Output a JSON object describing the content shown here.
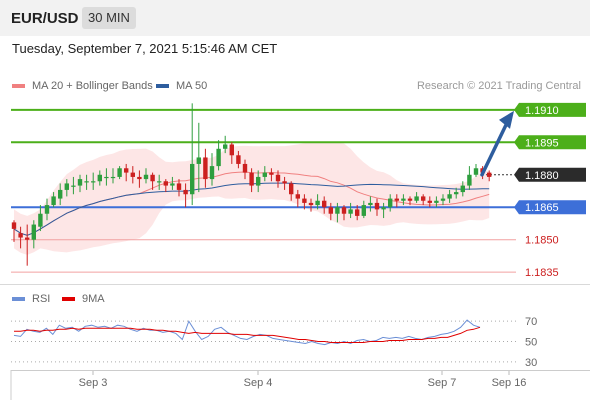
{
  "header": {
    "symbol": "EUR/USD",
    "timeframe": "30 MIN"
  },
  "datetime": "Tuesday, September 7, 2021 5:15:46 AM CET",
  "copyright": "Research © 2021 Trading Central",
  "legend": {
    "ma20": {
      "label": "MA 20 + Bollinger Bands",
      "color": "#f08080"
    },
    "ma50": {
      "label": "MA 50",
      "color": "#2e5d9e"
    },
    "rsi": {
      "label": "RSI",
      "color": "#6b8fd6"
    },
    "ma9": {
      "label": "9MA",
      "color": "#e00000"
    }
  },
  "colors": {
    "up": "#2e9e3e",
    "down": "#cc1f1f",
    "green_level": "#4caf1a",
    "blue_level": "#3d6fd8",
    "red_level": "#f2a0a0",
    "arrow": "#2e5d9e",
    "band": "#fde2e2"
  },
  "chart_data": {
    "type": "candlestick",
    "price_range": [
      1.183,
      1.1915
    ],
    "x_labels": [
      "Sep 3",
      "Sep 4",
      "Sep 7",
      "Sep 16"
    ],
    "levels": [
      {
        "value": "1.1910",
        "kind": "resistance"
      },
      {
        "value": "1.1895",
        "kind": "resistance"
      },
      {
        "value": "1.1880",
        "kind": "current"
      },
      {
        "value": "1.1865",
        "kind": "support"
      },
      {
        "value": "1.1850",
        "kind": "support"
      },
      {
        "value": "1.1835",
        "kind": "support"
      }
    ],
    "rsi_range": [
      20,
      80
    ],
    "rsi_ticks": [
      "70",
      "50",
      "30"
    ],
    "candles": [
      [
        1.1858,
        1.1855,
        1.1859,
        1.1849
      ],
      [
        1.1853,
        1.1851,
        1.1856,
        1.1846
      ],
      [
        1.1851,
        1.185,
        1.1857,
        1.1838
      ],
      [
        1.185,
        1.1857,
        1.1859,
        1.1846
      ],
      [
        1.1856,
        1.1862,
        1.1866,
        1.1854
      ],
      [
        1.1862,
        1.1866,
        1.1869,
        1.1859
      ],
      [
        1.1866,
        1.187,
        1.1872,
        1.1865
      ],
      [
        1.1869,
        1.1873,
        1.1876,
        1.1866
      ],
      [
        1.1873,
        1.1876,
        1.1878,
        1.187
      ],
      [
        1.1875,
        1.1875,
        1.1879,
        1.1871
      ],
      [
        1.1875,
        1.1878,
        1.188,
        1.1872
      ],
      [
        1.1877,
        1.1877,
        1.188,
        1.1873
      ],
      [
        1.1877,
        1.1877,
        1.1881,
        1.1873
      ],
      [
        1.1877,
        1.188,
        1.1882,
        1.1875
      ],
      [
        1.1879,
        1.1879,
        1.1883,
        1.1875
      ],
      [
        1.1879,
        1.1879,
        1.1883,
        1.1876
      ],
      [
        1.1879,
        1.1883,
        1.1884,
        1.1878
      ],
      [
        1.1883,
        1.1881,
        1.1885,
        1.1877
      ],
      [
        1.1881,
        1.1879,
        1.1884,
        1.1876
      ],
      [
        1.1879,
        1.1878,
        1.1882,
        1.1874
      ],
      [
        1.1878,
        1.188,
        1.1883,
        1.1876
      ],
      [
        1.188,
        1.1877,
        1.1881,
        1.1873
      ],
      [
        1.1877,
        1.1877,
        1.188,
        1.1873
      ],
      [
        1.1877,
        1.1875,
        1.1878,
        1.1872
      ],
      [
        1.1875,
        1.1876,
        1.1879,
        1.1873
      ],
      [
        1.1876,
        1.1873,
        1.1878,
        1.187
      ],
      [
        1.1873,
        1.1871,
        1.1876,
        1.1865
      ],
      [
        1.1871,
        1.1885,
        1.1913,
        1.1866
      ],
      [
        1.1885,
        1.1888,
        1.1904,
        1.1872
      ],
      [
        1.1888,
        1.1878,
        1.1892,
        1.1874
      ],
      [
        1.1878,
        1.1884,
        1.189,
        1.1875
      ],
      [
        1.1884,
        1.1892,
        1.1896,
        1.1882
      ],
      [
        1.1892,
        1.1894,
        1.1898,
        1.189
      ],
      [
        1.1894,
        1.1889,
        1.1895,
        1.1885
      ],
      [
        1.1889,
        1.1885,
        1.1891,
        1.1883
      ],
      [
        1.1885,
        1.1881,
        1.1887,
        1.1878
      ],
      [
        1.1881,
        1.1875,
        1.1883,
        1.1872
      ],
      [
        1.1875,
        1.1879,
        1.1882,
        1.1872
      ],
      [
        1.1879,
        1.1881,
        1.1884,
        1.1877
      ],
      [
        1.1881,
        1.188,
        1.1883,
        1.1877
      ],
      [
        1.188,
        1.1877,
        1.1882,
        1.1874
      ],
      [
        1.1877,
        1.1876,
        1.1879,
        1.1873
      ],
      [
        1.1876,
        1.1871,
        1.1877,
        1.1868
      ],
      [
        1.1871,
        1.1869,
        1.1873,
        1.1865
      ],
      [
        1.1869,
        1.1867,
        1.1871,
        1.1864
      ],
      [
        1.1867,
        1.1866,
        1.1869,
        1.1863
      ],
      [
        1.1866,
        1.1868,
        1.1871,
        1.1864
      ],
      [
        1.1868,
        1.1865,
        1.187,
        1.1862
      ],
      [
        1.1865,
        1.1862,
        1.1867,
        1.1859
      ],
      [
        1.1862,
        1.1865,
        1.1867,
        1.1858
      ],
      [
        1.1865,
        1.1862,
        1.1866,
        1.1859
      ],
      [
        1.1862,
        1.1864,
        1.1867,
        1.186
      ],
      [
        1.1864,
        1.1861,
        1.1866,
        1.1859
      ],
      [
        1.1861,
        1.1866,
        1.1868,
        1.186
      ],
      [
        1.1866,
        1.1867,
        1.187,
        1.1863
      ],
      [
        1.1867,
        1.1864,
        1.1869,
        1.1861
      ],
      [
        1.1864,
        1.1865,
        1.1867,
        1.186
      ],
      [
        1.1865,
        1.1869,
        1.1871,
        1.1863
      ],
      [
        1.1869,
        1.1868,
        1.1871,
        1.1865
      ],
      [
        1.1868,
        1.1869,
        1.1871,
        1.1866
      ],
      [
        1.1869,
        1.1868,
        1.187,
        1.1866
      ],
      [
        1.1868,
        1.187,
        1.1872,
        1.1867
      ],
      [
        1.187,
        1.1868,
        1.1871,
        1.1866
      ],
      [
        1.1868,
        1.1867,
        1.187,
        1.1865
      ],
      [
        1.1867,
        1.1868,
        1.187,
        1.1865
      ],
      [
        1.1868,
        1.1869,
        1.1871,
        1.1866
      ],
      [
        1.1869,
        1.1871,
        1.1873,
        1.1867
      ],
      [
        1.1871,
        1.1872,
        1.1874,
        1.1869
      ],
      [
        1.1872,
        1.1875,
        1.1877,
        1.187
      ],
      [
        1.1875,
        1.188,
        1.1884,
        1.1873
      ],
      [
        1.188,
        1.1883,
        1.1885,
        1.1879
      ],
      [
        1.1883,
        1.1881,
        1.1884,
        1.1878
      ],
      [
        1.1881,
        1.1879,
        1.1882,
        1.1877
      ]
    ],
    "rsi": [
      56,
      55,
      62,
      60,
      59,
      63,
      57,
      66,
      63,
      64,
      60,
      65,
      66,
      64,
      65,
      63,
      66,
      65,
      62,
      60,
      63,
      61,
      61,
      59,
      60,
      58,
      52,
      70,
      60,
      52,
      55,
      62,
      64,
      59,
      56,
      53,
      52,
      55,
      57,
      56,
      53,
      52,
      51,
      50,
      49,
      48,
      50,
      48,
      47,
      49,
      48,
      50,
      48,
      51,
      52,
      50,
      51,
      54,
      53,
      54,
      53,
      55,
      53,
      52,
      54,
      55,
      57,
      58,
      60,
      64,
      71,
      66,
      64
    ],
    "ma9": [
      60,
      60,
      61,
      61,
      60,
      61,
      61,
      62,
      62,
      63,
      62,
      63,
      63,
      63,
      63,
      63,
      63,
      63,
      63,
      62,
      62,
      62,
      61,
      61,
      60,
      60,
      59,
      58,
      59,
      58,
      58,
      58,
      58,
      58,
      57,
      57,
      57,
      56,
      56,
      56,
      56,
      55,
      54,
      53,
      52,
      52,
      51,
      50,
      50,
      49,
      49,
      49,
      49,
      49,
      49,
      50,
      50,
      50,
      51,
      51,
      51,
      52,
      52,
      52,
      53,
      53,
      54,
      54,
      56,
      58,
      61,
      62,
      64
    ]
  }
}
